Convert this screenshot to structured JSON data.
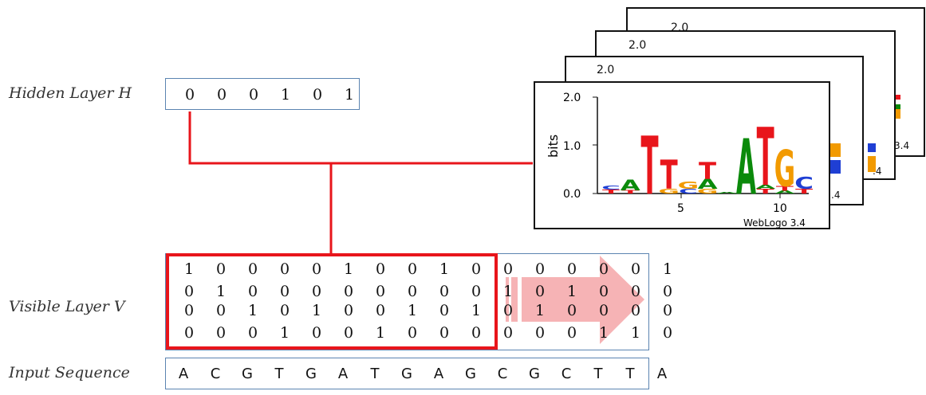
{
  "labels": {
    "hidden": "Hidden Layer H",
    "visible": "Visible Layer V",
    "input": "Input Sequence"
  },
  "hidden_values": [
    "0",
    "0",
    "0",
    "1",
    "0",
    "1"
  ],
  "visible_matrix": [
    [
      "1",
      "0",
      "0",
      "0",
      "0",
      "1",
      "0",
      "0",
      "1",
      "0",
      "0",
      "0",
      "0",
      "0",
      "0",
      "1"
    ],
    [
      "0",
      "1",
      "0",
      "0",
      "0",
      "0",
      "0",
      "0",
      "0",
      "0",
      "1",
      "0",
      "1",
      "0",
      "0",
      "0"
    ],
    [
      "0",
      "0",
      "1",
      "0",
      "1",
      "0",
      "0",
      "1",
      "0",
      "1",
      "0",
      "1",
      "0",
      "0",
      "0",
      "0"
    ],
    [
      "0",
      "0",
      "0",
      "1",
      "0",
      "0",
      "1",
      "0",
      "0",
      "0",
      "0",
      "0",
      "0",
      "1",
      "1",
      "0"
    ]
  ],
  "input_sequence": [
    "A",
    "C",
    "G",
    "T",
    "G",
    "A",
    "T",
    "G",
    "A",
    "G",
    "C",
    "G",
    "C",
    "T",
    "T",
    "A"
  ],
  "logo": {
    "ylabel": "bits",
    "yticks": [
      "0.0",
      "1.0",
      "2.0"
    ],
    "xticks": [
      "5",
      "10"
    ],
    "caption": "WebLogo 3.4",
    "stack_top_tick": "2.0",
    "back_captions": [
      "3.4",
      ".4",
      ".4"
    ],
    "columns": [
      [
        {
          "l": "T",
          "h": 0.08
        },
        {
          "l": "C",
          "h": 0.08
        }
      ],
      [
        {
          "l": "T",
          "h": 0.07
        },
        {
          "l": "A",
          "h": 0.22
        }
      ],
      [
        {
          "l": "T",
          "h": 1.2
        }
      ],
      [
        {
          "l": "G",
          "h": 0.1
        },
        {
          "l": "T",
          "h": 0.6
        }
      ],
      [
        {
          "l": "C",
          "h": 0.1
        },
        {
          "l": "G",
          "h": 0.15
        }
      ],
      [
        {
          "l": "G",
          "h": 0.1
        },
        {
          "l": "A",
          "h": 0.2
        },
        {
          "l": "T",
          "h": 0.35
        }
      ],
      [
        {
          "l": "A",
          "h": 0.03
        }
      ],
      [
        {
          "l": "A",
          "h": 1.15
        }
      ],
      [
        {
          "l": "T",
          "h": 0.1
        },
        {
          "l": "A",
          "h": 0.08
        },
        {
          "l": "T",
          "h": 1.2
        }
      ],
      [
        {
          "l": "A",
          "h": 0.06
        },
        {
          "l": "T",
          "h": 0.1
        },
        {
          "l": "G",
          "h": 0.75
        }
      ],
      [
        {
          "l": "T",
          "h": 0.1
        },
        {
          "l": "C",
          "h": 0.25
        }
      ]
    ]
  },
  "colors": {
    "red": "#e8151b",
    "box_border": "#5b84b1",
    "arrow": "#f6b3b5",
    "A": "#0b8a0b",
    "C": "#1f3fd4",
    "G": "#f29a00",
    "T": "#e8151b"
  }
}
